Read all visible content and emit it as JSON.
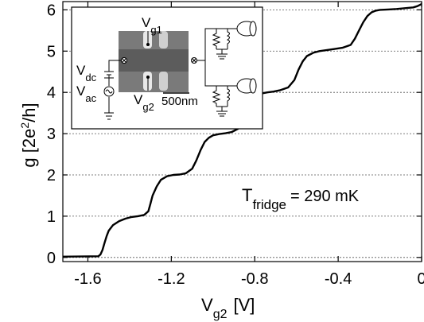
{
  "chart_data": {
    "type": "line",
    "xlim": [
      -1.72,
      0.0
    ],
    "ylim": [
      -0.1,
      6.2
    ],
    "xticks": [
      -1.6,
      -1.2,
      -0.8,
      -0.4,
      0
    ],
    "xtick_labels": [
      "-1.6",
      "-1.2",
      "-0.8",
      "-0.4",
      "0"
    ],
    "yticks": [
      0,
      1,
      2,
      3,
      4,
      5,
      6
    ],
    "ytick_labels": [
      "0",
      "1",
      "2",
      "3",
      "4",
      "5",
      "6"
    ],
    "grid": "horizontal dotted at integer values",
    "xlabel": {
      "base": "V",
      "sub": "g2",
      "unit": "[V]"
    },
    "ylabel": {
      "prefix": "g [2e",
      "sup": "2",
      "suffix": "/h]"
    },
    "annotation": {
      "base": "T",
      "sub": "fridge",
      "value": "= 290 mK"
    },
    "series": [
      {
        "x": [
          -1.72,
          -1.55,
          -1.54,
          -1.53,
          -1.52,
          -1.51,
          -1.5,
          -1.48,
          -1.45,
          -1.42,
          -1.39,
          -1.36,
          -1.33,
          -1.31,
          -1.3,
          -1.29,
          -1.27,
          -1.25,
          -1.22,
          -1.19,
          -1.16,
          -1.13,
          -1.1,
          -1.08,
          -1.06,
          -1.04,
          -1.02,
          -1.0,
          -0.97,
          -0.94,
          -0.91,
          -0.88,
          -0.85,
          -0.83,
          -0.81,
          -0.79,
          -0.77,
          -0.74,
          -0.71,
          -0.68,
          -0.64,
          -0.61,
          -0.59,
          -0.57,
          -0.55,
          -0.52,
          -0.49,
          -0.46,
          -0.42,
          -0.38,
          -0.34,
          -0.32,
          -0.3,
          -0.28,
          -0.26,
          -0.24,
          -0.22,
          -0.2,
          -0.16,
          -0.12,
          -0.08,
          -0.04,
          -0.02,
          0.0
        ],
        "y": [
          0.02,
          0.03,
          0.07,
          0.18,
          0.35,
          0.52,
          0.65,
          0.78,
          0.88,
          0.94,
          0.98,
          1.0,
          1.03,
          1.12,
          1.3,
          1.5,
          1.72,
          1.88,
          1.97,
          2.0,
          2.01,
          2.04,
          2.15,
          2.35,
          2.6,
          2.8,
          2.9,
          2.96,
          2.99,
          3.01,
          3.04,
          3.12,
          3.35,
          3.6,
          3.82,
          3.92,
          3.97,
          4.0,
          4.02,
          4.05,
          4.12,
          4.3,
          4.55,
          4.75,
          4.88,
          4.96,
          5.0,
          5.02,
          5.05,
          5.08,
          5.15,
          5.3,
          5.5,
          5.7,
          5.85,
          5.94,
          5.98,
          6.0,
          6.01,
          6.02,
          6.04,
          6.06,
          6.09,
          6.14
        ]
      }
    ]
  },
  "inset": {
    "labels": {
      "vg1": {
        "base": "V",
        "sub": "g1"
      },
      "vg2": {
        "base": "V",
        "sub": "g2"
      },
      "vdc": {
        "base": "V",
        "sub": "dc"
      },
      "vac": {
        "base": "V",
        "sub": "ac"
      },
      "scale": "500nm"
    }
  }
}
